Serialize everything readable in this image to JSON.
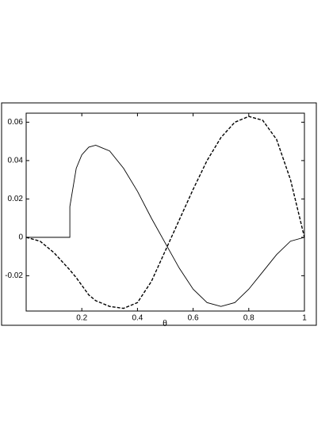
{
  "chart_data": {
    "type": "line",
    "x_label": "θ",
    "x": [
      0,
      0.05,
      0.1,
      0.157,
      0.157,
      0.18,
      0.2,
      0.225,
      0.25,
      0.3,
      0.35,
      0.4,
      0.45,
      0.5,
      0.55,
      0.6,
      0.65,
      0.7,
      0.75,
      0.8,
      0.85,
      0.9,
      0.95,
      1
    ],
    "series": [
      {
        "color": "#000000",
        "line_style": "solid",
        "values": [
          0,
          0,
          0,
          0,
          0.016,
          0.036,
          0.043,
          0.047,
          0.048,
          0.045,
          0.036,
          0.024,
          0.01,
          -0.003,
          -0.016,
          -0.027,
          -0.034,
          -0.036,
          -0.034,
          -0.027,
          -0.018,
          -0.009,
          -0.002,
          0
        ]
      },
      {
        "color": "#000000",
        "line_style": "dashed",
        "values": [
          0,
          -0.002,
          -0.008,
          -0.017,
          -0.017,
          -0.021,
          -0.025,
          -0.03,
          -0.033,
          -0.036,
          -0.037,
          -0.034,
          -0.023,
          -0.007,
          0.009,
          0.025,
          0.04,
          0.052,
          0.06,
          0.063,
          0.061,
          0.051,
          0.03,
          0
        ]
      }
    ],
    "xlim": [
      0,
      1
    ],
    "ylim": [
      -0.0384,
      0.0647
    ],
    "xticks": [
      0.2,
      0.4,
      0.6,
      0.8,
      1
    ],
    "yticks": [
      -0.02,
      0,
      0.02,
      0.04,
      0.06
    ]
  }
}
